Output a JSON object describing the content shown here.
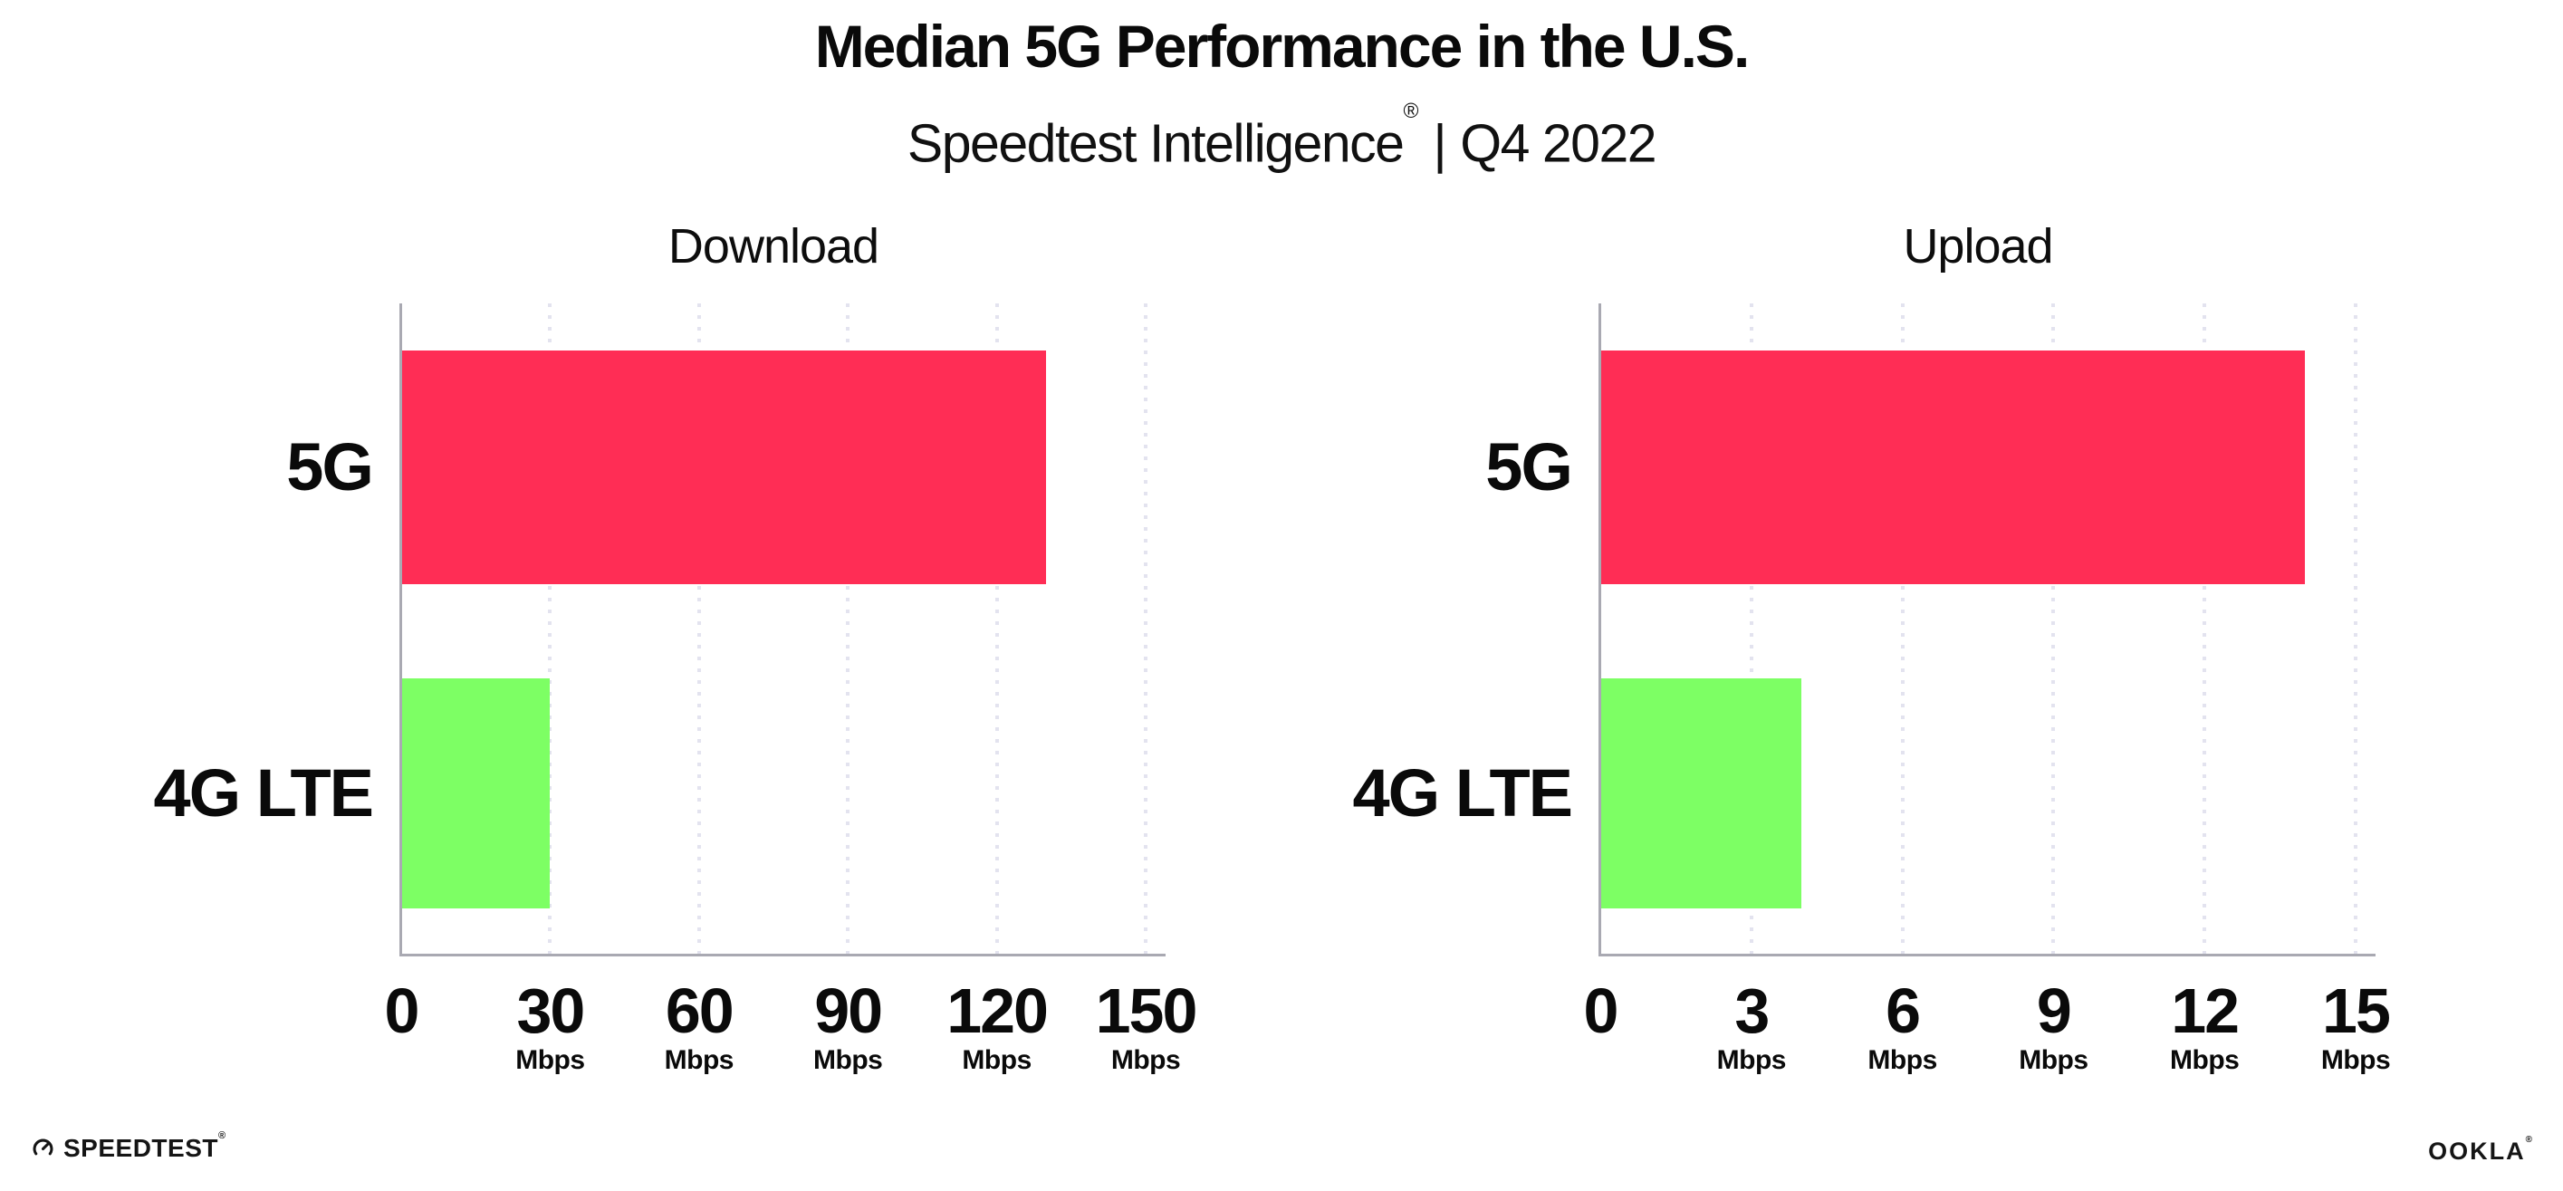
{
  "header": {
    "title": "Median 5G Performance in the U.S.",
    "subtitle_brand": "Speedtest Intelligence",
    "subtitle_reg": "®",
    "subtitle_separator": "|",
    "subtitle_period": "Q4 2022"
  },
  "chart_data": [
    {
      "type": "bar",
      "orientation": "horizontal",
      "title": "Download",
      "categories": [
        "5G",
        "4G LTE"
      ],
      "values": [
        130,
        30
      ],
      "unit": "Mbps",
      "xlabel": "",
      "ylabel": "",
      "xlim": [
        0,
        150
      ],
      "ticks": [
        0,
        30,
        60,
        90,
        120,
        150
      ],
      "bar_colors": [
        "#FF2D55",
        "#7DFF64"
      ],
      "grid": "dotted-vertical",
      "legend": "none"
    },
    {
      "type": "bar",
      "orientation": "horizontal",
      "title": "Upload",
      "categories": [
        "5G",
        "4G LTE"
      ],
      "values": [
        14,
        4
      ],
      "unit": "Mbps",
      "xlabel": "",
      "ylabel": "",
      "xlim": [
        0,
        15
      ],
      "ticks": [
        0,
        3,
        6,
        9,
        12,
        15
      ],
      "bar_colors": [
        "#FF2D55",
        "#7DFF64"
      ],
      "grid": "dotted-vertical",
      "legend": "none"
    }
  ],
  "footer": {
    "speedtest_label": "SPEEDTEST",
    "speedtest_reg": "®",
    "ookla_label": "OOKLA",
    "ookla_reg": "®"
  },
  "colors": {
    "bar_5g": "#FF2D55",
    "bar_4g_lte": "#7DFF64",
    "axis": "#A9A9B2",
    "gridline_dot": "#E3E3EF",
    "text": "#0A0A0A",
    "background": "#FFFFFF"
  }
}
